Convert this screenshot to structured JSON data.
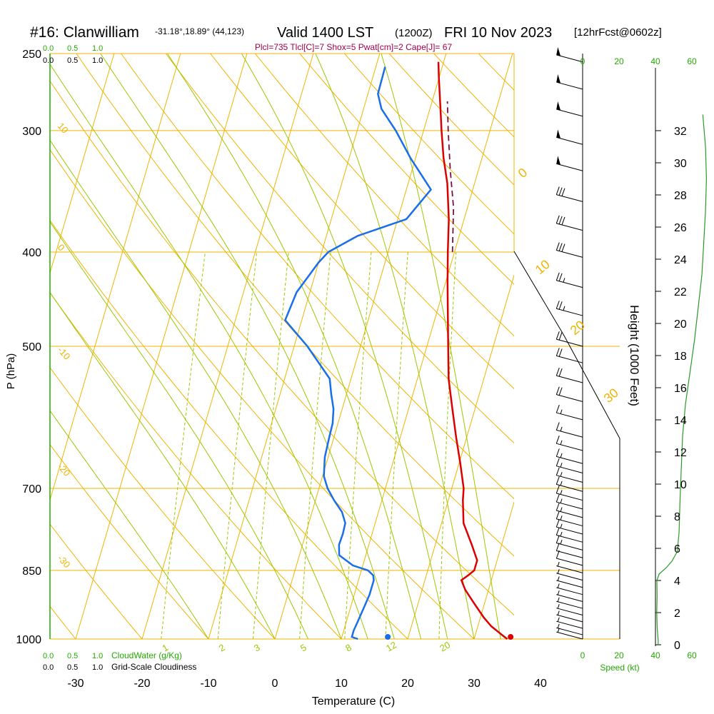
{
  "header": {
    "station": "#16: Clanwilliam",
    "coords": "-31.18°,18.89° (44,123)",
    "valid": "Valid 1400 LST",
    "zulu": "(1200Z)",
    "date": "FRI 10 Nov 2023",
    "forecast": "[12hrFcst@0602z]",
    "indices": "Plcl=735 Tlcl[C]=7 Shox=5 Pwat[cm]=2 Cape[J]= 67"
  },
  "colors": {
    "orange": "#f0b400",
    "green_light": "#9ac800",
    "green_label": "#22aa00",
    "temperature": "#dd0000",
    "dewpoint": "#1a6ee8",
    "parcel": "#7a1040",
    "indices": "#a0004a"
  },
  "scale_labels": {
    "top_cloud": [
      "0.0",
      "0.5",
      "1.0"
    ],
    "top_cloudiness": [
      "0.0",
      "0.5",
      "1.0"
    ],
    "bottom_cloud": [
      "0.0",
      "0.5",
      "1.0"
    ],
    "bottom_cloud_title": "CloudWater (g/Kg)",
    "bottom_cloudiness": [
      "0.0",
      "0.5",
      "1.0"
    ],
    "bottom_cloudiness_title": "Grid-Scale Cloudiness",
    "speed_ticks": [
      "0",
      "20",
      "40",
      "60"
    ],
    "speed_title": "Speed (kt)"
  },
  "chart_data": {
    "type": "skew-t",
    "xlabel": "Temperature (C)",
    "ylabel": "P (hPa)",
    "y2label": "Height (1000 Feet)",
    "x_ticks": [
      -30,
      -20,
      -10,
      0,
      10,
      20,
      30,
      40
    ],
    "x_tick_labels": [
      "-30",
      "-20",
      "-10",
      "0",
      "10",
      "20",
      "30",
      "40"
    ],
    "pressure_levels": [
      250,
      300,
      400,
      500,
      700,
      850,
      1000
    ],
    "pressure_labels": [
      "250",
      "300",
      "400",
      "500",
      "700",
      "850",
      "1000"
    ],
    "height_ticks": [
      0,
      2,
      4,
      6,
      8,
      10,
      12,
      14,
      16,
      18,
      20,
      22,
      24,
      26,
      28,
      30,
      32
    ],
    "height_labels": [
      "0",
      "2",
      "4",
      "6",
      "8",
      "10",
      "12",
      "14",
      "16",
      "18",
      "20",
      "22",
      "24",
      "26",
      "28",
      "30",
      "32"
    ],
    "isotherm_labels": [
      "10",
      "0",
      "-10",
      "-20",
      "-30"
    ],
    "dry_adiabat_labels": [
      "0",
      "10",
      "20",
      "30"
    ],
    "mixing_ratio_labels": [
      "1",
      "2",
      "3",
      "5",
      "8",
      "12",
      "20"
    ],
    "temperature_profile": [
      [
        1000,
        35
      ],
      [
        990,
        34
      ],
      [
        970,
        32
      ],
      [
        950,
        30.5
      ],
      [
        920,
        28.5
      ],
      [
        890,
        26.5
      ],
      [
        870,
        25.5
      ],
      [
        860,
        26.3
      ],
      [
        850,
        27
      ],
      [
        830,
        27
      ],
      [
        800,
        25.5
      ],
      [
        760,
        23.3
      ],
      [
        720,
        22.2
      ],
      [
        700,
        21.8
      ],
      [
        660,
        20.2
      ],
      [
        620,
        18.4
      ],
      [
        580,
        16.6
      ],
      [
        540,
        14.7
      ],
      [
        500,
        13.2
      ],
      [
        460,
        11.6
      ],
      [
        430,
        10.3
      ],
      [
        400,
        9.0
      ],
      [
        370,
        7.7
      ],
      [
        340,
        5.9
      ],
      [
        320,
        4.2
      ],
      [
        300,
        2.7
      ],
      [
        280,
        1.2
      ],
      [
        265,
        0.0
      ],
      [
        255,
        -0.8
      ]
    ],
    "dewpoint_profile": [
      [
        1000,
        12.5
      ],
      [
        995,
        11.5
      ],
      [
        980,
        11.5
      ],
      [
        960,
        11.7
      ],
      [
        930,
        12.0
      ],
      [
        900,
        12.3
      ],
      [
        870,
        12.3
      ],
      [
        860,
        12.0
      ],
      [
        850,
        11.0
      ],
      [
        840,
        8.5
      ],
      [
        820,
        6.0
      ],
      [
        800,
        5.5
      ],
      [
        780,
        5.6
      ],
      [
        760,
        5.5
      ],
      [
        740,
        4.5
      ],
      [
        720,
        2.8
      ],
      [
        700,
        1.3
      ],
      [
        680,
        0.2
      ],
      [
        650,
        -0.5
      ],
      [
        620,
        -0.7
      ],
      [
        600,
        -0.8
      ],
      [
        580,
        -1.3
      ],
      [
        560,
        -2.3
      ],
      [
        540,
        -3.2
      ],
      [
        500,
        -8.0
      ],
      [
        470,
        -12.5
      ],
      [
        440,
        -12.0
      ],
      [
        410,
        -10.0
      ],
      [
        400,
        -9.0
      ],
      [
        385,
        -5.3
      ],
      [
        370,
        1.3
      ],
      [
        345,
        3.7
      ],
      [
        320,
        -0.8
      ],
      [
        300,
        -4.2
      ],
      [
        285,
        -7.3
      ],
      [
        275,
        -8.5
      ],
      [
        258,
        -8.6
      ]
    ],
    "parcel_profile": [
      [
        400,
        9.7
      ],
      [
        360,
        7.9
      ],
      [
        330,
        5.8
      ],
      [
        300,
        3.7
      ],
      [
        280,
        2.3
      ]
    ],
    "surface_temperature": 35.5,
    "surface_dewpoint": 17,
    "wind_speed_profile": [
      [
        0,
        1.5
      ],
      [
        0.3,
        1.5
      ],
      [
        1.0,
        1.0
      ],
      [
        2.0,
        0.7
      ],
      [
        3.0,
        0.9
      ],
      [
        4.0,
        0.8
      ],
      [
        4.4,
        2.0
      ],
      [
        4.8,
        6.0
      ],
      [
        5.2,
        9.0
      ],
      [
        5.8,
        12.0
      ],
      [
        7.0,
        13.0
      ],
      [
        9.0,
        13.5
      ],
      [
        11.0,
        14.2
      ],
      [
        13.0,
        14.9
      ],
      [
        15.0,
        16.5
      ],
      [
        17.0,
        19.0
      ],
      [
        19.0,
        21.5
      ],
      [
        21.0,
        23.5
      ],
      [
        23.0,
        25.5
      ],
      [
        25.0,
        26.5
      ],
      [
        27.0,
        27.5
      ],
      [
        29.0,
        28.0
      ],
      [
        31.0,
        27.5
      ],
      [
        33.0,
        26.0
      ]
    ],
    "barbs": [
      {
        "p": 1000,
        "kt": 5
      },
      {
        "p": 990,
        "kt": 5
      },
      {
        "p": 975,
        "kt": 5
      },
      {
        "p": 960,
        "kt": 5
      },
      {
        "p": 945,
        "kt": 5
      },
      {
        "p": 930,
        "kt": 5
      },
      {
        "p": 915,
        "kt": 5
      },
      {
        "p": 900,
        "kt": 5
      },
      {
        "p": 885,
        "kt": 5
      },
      {
        "p": 870,
        "kt": 5
      },
      {
        "p": 855,
        "kt": 5
      },
      {
        "p": 840,
        "kt": 10
      },
      {
        "p": 825,
        "kt": 10
      },
      {
        "p": 810,
        "kt": 15
      },
      {
        "p": 795,
        "kt": 15
      },
      {
        "p": 780,
        "kt": 15
      },
      {
        "p": 765,
        "kt": 15
      },
      {
        "p": 750,
        "kt": 15
      },
      {
        "p": 735,
        "kt": 15
      },
      {
        "p": 720,
        "kt": 15
      },
      {
        "p": 705,
        "kt": 15
      },
      {
        "p": 690,
        "kt": 15
      },
      {
        "p": 675,
        "kt": 15
      },
      {
        "p": 660,
        "kt": 15
      },
      {
        "p": 640,
        "kt": 15
      },
      {
        "p": 620,
        "kt": 15
      },
      {
        "p": 595,
        "kt": 15
      },
      {
        "p": 570,
        "kt": 20
      },
      {
        "p": 545,
        "kt": 20
      },
      {
        "p": 520,
        "kt": 20
      },
      {
        "p": 500,
        "kt": 20
      },
      {
        "p": 465,
        "kt": 25
      },
      {
        "p": 435,
        "kt": 25
      },
      {
        "p": 405,
        "kt": 30
      },
      {
        "p": 380,
        "kt": 30
      },
      {
        "p": 355,
        "kt": 30
      },
      {
        "p": 330,
        "kt": 50
      },
      {
        "p": 310,
        "kt": 50
      },
      {
        "p": 290,
        "kt": 50
      },
      {
        "p": 272,
        "kt": 50
      },
      {
        "p": 255,
        "kt": 50
      }
    ]
  }
}
